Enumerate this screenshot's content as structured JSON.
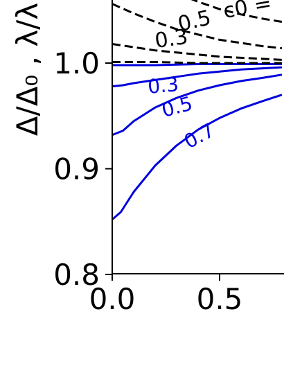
{
  "chart_data": {
    "type": "line",
    "ylabel": "Δ/Δ₀ , λ/λ",
    "ylim": [
      0.8,
      1.06
    ],
    "xlim": [
      0.0,
      0.79
    ],
    "yticks": [
      "0.8",
      "0.9",
      "1.0"
    ],
    "xticks": [
      "0.0",
      "0.5"
    ],
    "grid": false,
    "legend": "none",
    "series": [
      {
        "name": "0.3",
        "color": "#0000dd",
        "style": "solid",
        "x": [
          0.0,
          0.05,
          0.1,
          0.2,
          0.3,
          0.4,
          0.5,
          0.6,
          0.7,
          0.79
        ],
        "y": [
          0.978,
          0.979,
          0.981,
          0.984,
          0.987,
          0.99,
          0.992,
          0.994,
          0.995,
          0.996
        ]
      },
      {
        "name": "0.5",
        "color": "#0000dd",
        "style": "solid",
        "x": [
          0.0,
          0.05,
          0.1,
          0.2,
          0.3,
          0.4,
          0.5,
          0.6,
          0.7,
          0.79
        ],
        "y": [
          0.932,
          0.936,
          0.945,
          0.958,
          0.967,
          0.974,
          0.979,
          0.983,
          0.986,
          0.989
        ]
      },
      {
        "name": "0.7",
        "color": "#0000dd",
        "style": "solid",
        "x": [
          0.0,
          0.04,
          0.1,
          0.2,
          0.3,
          0.4,
          0.5,
          0.6,
          0.7,
          0.79
        ],
        "y": [
          0.852,
          0.859,
          0.878,
          0.903,
          0.922,
          0.937,
          0.948,
          0.957,
          0.964,
          0.97
        ]
      },
      {
        "name": "",
        "color": "#0000dd",
        "style": "solid",
        "x": [
          0.0,
          0.2,
          0.4,
          0.6,
          0.79
        ],
        "y": [
          0.998,
          0.998,
          0.999,
          0.999,
          0.999
        ]
      },
      {
        "name": "",
        "color": "#000000",
        "style": "dashed",
        "x": [
          0.0,
          0.2,
          0.4,
          0.6,
          0.79
        ],
        "y": [
          1.001,
          1.001,
          1.0,
          1.0,
          1.0
        ]
      },
      {
        "name": "0.3",
        "color": "#000000",
        "style": "dashed",
        "x": [
          0.0,
          0.1,
          0.2,
          0.3,
          0.4,
          0.5,
          0.6,
          0.7,
          0.79
        ],
        "y": [
          1.018,
          1.015,
          1.012,
          1.01,
          1.008,
          1.006,
          1.005,
          1.004,
          1.003
        ]
      },
      {
        "name": "0.5",
        "color": "#000000",
        "style": "dashed",
        "x": [
          0.0,
          0.1,
          0.2,
          0.3,
          0.4,
          0.5,
          0.6,
          0.7,
          0.79
        ],
        "y": [
          1.056,
          1.047,
          1.039,
          1.032,
          1.027,
          1.022,
          1.019,
          1.016,
          1.014
        ]
      },
      {
        "name": "",
        "color": "#000000",
        "style": "dashed",
        "x": [
          0.2,
          0.3,
          0.4,
          0.5,
          0.6,
          0.7,
          0.79
        ],
        "y": [
          1.075,
          1.066,
          1.058,
          1.051,
          1.046,
          1.042,
          1.039
        ]
      }
    ],
    "annotations": [
      {
        "text": "0.3",
        "color": "#0000dd",
        "x": 0.24,
        "y": 0.9725,
        "rotation": -5
      },
      {
        "text": "0.5",
        "color": "#0000dd",
        "x": 0.31,
        "y": 0.9525,
        "rotation": -15
      },
      {
        "text": "0.7",
        "color": "#0000dd",
        "x": 0.42,
        "y": 0.9255,
        "rotation": -28
      },
      {
        "text": "0.3",
        "color": "#000000",
        "x": 0.28,
        "y": 1.0165,
        "rotation": -8
      },
      {
        "text": "0.5",
        "color": "#000000",
        "x": 0.39,
        "y": 1.0335,
        "rotation": -13
      },
      {
        "text": "c0 =",
        "color": "#000000",
        "x": 0.635,
        "y": 1.0465,
        "rotation": -10
      }
    ]
  }
}
